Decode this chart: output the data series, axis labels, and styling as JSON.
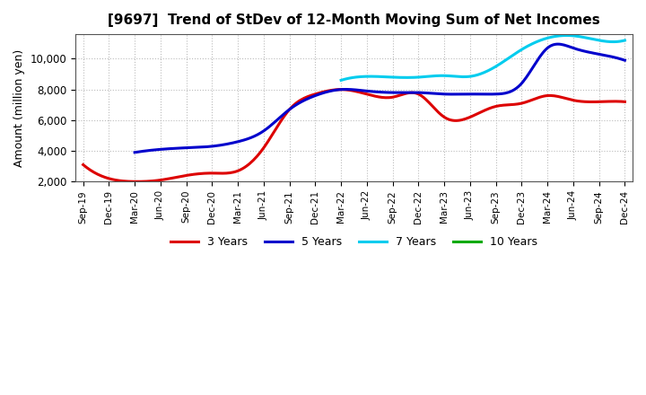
{
  "title": "[9697]  Trend of StDev of 12-Month Moving Sum of Net Incomes",
  "ylabel": "Amount (million yen)",
  "background_color": "#ffffff",
  "plot_bg_color": "#ffffff",
  "grid_color": "#bbbbbb",
  "x_labels": [
    "Sep-19",
    "Dec-19",
    "Mar-20",
    "Jun-20",
    "Sep-20",
    "Dec-20",
    "Mar-21",
    "Jun-21",
    "Sep-21",
    "Dec-21",
    "Mar-22",
    "Jun-22",
    "Sep-22",
    "Dec-22",
    "Mar-23",
    "Jun-23",
    "Sep-23",
    "Dec-23",
    "Mar-24",
    "Jun-24",
    "Sep-24",
    "Dec-24"
  ],
  "series": {
    "3 Years": {
      "color": "#dd0000",
      "data": [
        3100,
        2200,
        2000,
        2100,
        2400,
        2550,
        2700,
        4200,
        6700,
        7700,
        8000,
        7700,
        7500,
        7700,
        6200,
        6200,
        6900,
        7100,
        7600,
        7300,
        7200,
        7200
      ]
    },
    "5 Years": {
      "color": "#0000cc",
      "data": [
        null,
        null,
        3900,
        4100,
        4200,
        4300,
        4600,
        5300,
        6700,
        7600,
        8000,
        7900,
        7800,
        7800,
        7700,
        7700,
        7700,
        8400,
        10700,
        10700,
        10300,
        9900
      ]
    },
    "7 Years": {
      "color": "#00ccee",
      "data": [
        null,
        null,
        null,
        null,
        null,
        null,
        null,
        null,
        null,
        null,
        8600,
        8850,
        8800,
        8800,
        8900,
        8850,
        9500,
        10600,
        11350,
        11500,
        11200,
        11200
      ]
    },
    "10 Years": {
      "color": "#00aa00",
      "data": [
        null,
        null,
        null,
        null,
        null,
        null,
        null,
        null,
        null,
        null,
        null,
        null,
        null,
        null,
        null,
        null,
        null,
        null,
        null,
        null,
        null,
        null
      ]
    }
  },
  "ylim": [
    2000,
    11600
  ],
  "yticks": [
    2000,
    4000,
    6000,
    8000,
    10000
  ],
  "legend_labels": [
    "3 Years",
    "5 Years",
    "7 Years",
    "10 Years"
  ],
  "legend_colors": [
    "#dd0000",
    "#0000cc",
    "#00ccee",
    "#00aa00"
  ]
}
